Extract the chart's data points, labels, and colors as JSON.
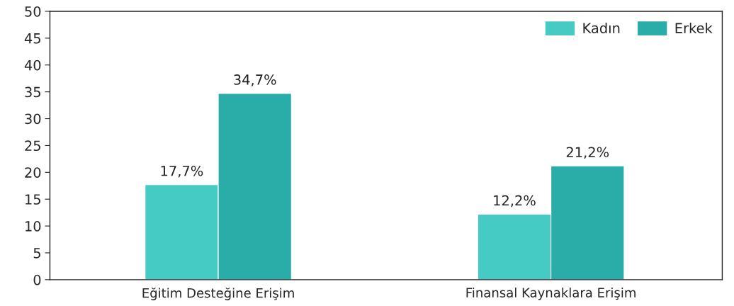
{
  "chart_data": {
    "type": "bar",
    "categories": [
      "Eğitim Desteğine Erişim",
      "Finansal Kaynaklara Erişim"
    ],
    "series": [
      {
        "name": "Kadın",
        "color": "#45cbc3",
        "values": [
          17.7,
          12.2
        ],
        "value_labels": [
          "17,7%",
          "12,2%"
        ]
      },
      {
        "name": "Erkek",
        "color": "#2aada9",
        "values": [
          34.7,
          21.2
        ],
        "value_labels": [
          "34,7%",
          "21,2%"
        ]
      }
    ],
    "ylim": [
      0,
      50
    ],
    "yticks": [
      0,
      5,
      10,
      15,
      20,
      25,
      30,
      35,
      40,
      45,
      50
    ],
    "grid": false,
    "legend": "top right"
  }
}
